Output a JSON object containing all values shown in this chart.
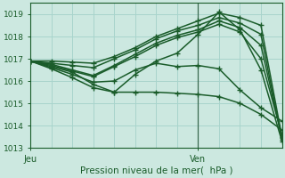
{
  "title": "",
  "xlabel": "Pression niveau de la mer(  hPa )",
  "ylabel": "",
  "ylim": [
    1013,
    1019.5
  ],
  "xlim": [
    0,
    24
  ],
  "yticks": [
    1013,
    1014,
    1015,
    1016,
    1017,
    1018,
    1019
  ],
  "xtick_positions": [
    0,
    16
  ],
  "xtick_labels": [
    "Jeu",
    "Ven"
  ],
  "vline_x": 16,
  "bg_color": "#cce8e0",
  "grid_color": "#a8d4cc",
  "line_color": "#1a5c2a",
  "marker": "+",
  "markersize": 4,
  "linewidth": 1.1,
  "series": [
    [
      0,
      1016.9,
      2,
      1016.9,
      4,
      1016.85,
      6,
      1016.8,
      8,
      1017.1,
      10,
      1017.5,
      12,
      1018.0,
      14,
      1018.35,
      16,
      1018.7,
      18,
      1019.05,
      20,
      1018.85,
      22,
      1018.5,
      24,
      1013.5
    ],
    [
      0,
      1016.9,
      2,
      1016.8,
      4,
      1016.7,
      6,
      1016.6,
      8,
      1017.0,
      10,
      1017.4,
      12,
      1017.9,
      14,
      1018.25,
      16,
      1018.5,
      18,
      1018.85,
      20,
      1018.6,
      22,
      1018.1,
      24,
      1013.35
    ],
    [
      0,
      1016.9,
      2,
      1016.75,
      4,
      1016.5,
      6,
      1016.25,
      8,
      1016.7,
      10,
      1017.2,
      12,
      1017.7,
      14,
      1018.05,
      16,
      1018.3,
      18,
      1018.7,
      20,
      1018.4,
      22,
      1017.6,
      24,
      1013.45
    ],
    [
      0,
      1016.9,
      2,
      1016.7,
      4,
      1016.45,
      6,
      1016.2,
      8,
      1016.65,
      10,
      1017.1,
      12,
      1017.6,
      14,
      1017.95,
      16,
      1018.2,
      18,
      1018.55,
      20,
      1018.2,
      22,
      1017.0,
      24,
      1013.6
    ],
    [
      0,
      1016.9,
      2,
      1016.65,
      4,
      1016.4,
      6,
      1015.85,
      8,
      1015.5,
      10,
      1016.3,
      12,
      1016.9,
      14,
      1017.25,
      16,
      1018.1,
      18,
      1019.1,
      20,
      1018.3,
      22,
      1016.5,
      24,
      1013.3
    ],
    [
      0,
      1016.9,
      2,
      1016.6,
      4,
      1016.3,
      6,
      1015.95,
      8,
      1016.0,
      10,
      1016.5,
      12,
      1016.8,
      14,
      1016.65,
      16,
      1016.7,
      18,
      1016.55,
      20,
      1015.6,
      22,
      1014.8,
      24,
      1014.2
    ],
    [
      0,
      1016.9,
      2,
      1016.55,
      4,
      1016.15,
      6,
      1015.7,
      8,
      1015.5,
      10,
      1015.5,
      12,
      1015.5,
      14,
      1015.45,
      16,
      1015.4,
      18,
      1015.3,
      20,
      1015.0,
      22,
      1014.5,
      24,
      1013.8
    ]
  ]
}
